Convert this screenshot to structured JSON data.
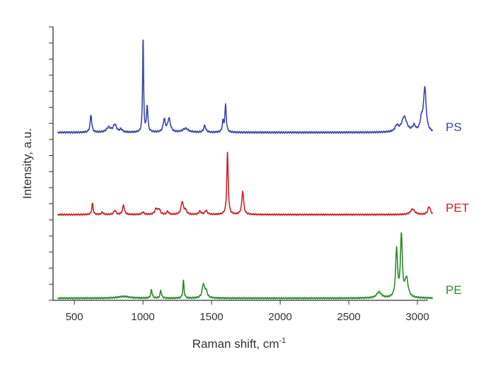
{
  "chart_data": {
    "type": "line",
    "title": "",
    "xlabel": "Raman shift, cm",
    "xlabel_superscript": "-1",
    "ylabel": "Intensity, a.u.",
    "xlim": [
      380,
      3150
    ],
    "x_ticks": [
      500,
      1000,
      1500,
      2000,
      2500,
      3000
    ],
    "grid": false,
    "legend": "inline-right",
    "series": [
      {
        "name": "PS",
        "color": "#3b48a8",
        "baseline": 0.0,
        "peaks": [
          [
            621,
            0.18,
            7
          ],
          [
            750,
            0.05,
            18
          ],
          [
            795,
            0.08,
            14
          ],
          [
            840,
            0.03,
            10
          ],
          [
            1001,
            1.0,
            4
          ],
          [
            1031,
            0.27,
            6
          ],
          [
            1155,
            0.13,
            9
          ],
          [
            1190,
            0.14,
            12
          ],
          [
            1310,
            0.04,
            25
          ],
          [
            1450,
            0.07,
            9
          ],
          [
            1583,
            0.11,
            6
          ],
          [
            1602,
            0.28,
            6
          ],
          [
            2850,
            0.06,
            15
          ],
          [
            2904,
            0.16,
            22
          ],
          [
            2975,
            0.06,
            12
          ],
          [
            3030,
            0.12,
            12
          ],
          [
            3054,
            0.45,
            11
          ]
        ]
      },
      {
        "name": "PET",
        "color": "#cc2228",
        "baseline": 0.0,
        "peaks": [
          [
            632,
            0.14,
            6
          ],
          [
            704,
            0.03,
            8
          ],
          [
            795,
            0.05,
            10
          ],
          [
            858,
            0.12,
            8
          ],
          [
            1000,
            0.03,
            10
          ],
          [
            1096,
            0.07,
            12
          ],
          [
            1118,
            0.06,
            10
          ],
          [
            1180,
            0.04,
            8
          ],
          [
            1286,
            0.16,
            10
          ],
          [
            1310,
            0.05,
            10
          ],
          [
            1415,
            0.04,
            10
          ],
          [
            1460,
            0.05,
            10
          ],
          [
            1616,
            0.78,
            6
          ],
          [
            1727,
            0.3,
            8
          ],
          [
            2965,
            0.07,
            18
          ],
          [
            3085,
            0.1,
            11
          ]
        ]
      },
      {
        "name": "PE",
        "color": "#2f8a2f",
        "baseline": 0.0,
        "peaks": [
          [
            860,
            0.02,
            50
          ],
          [
            1062,
            0.1,
            6
          ],
          [
            1130,
            0.09,
            6
          ],
          [
            1295,
            0.21,
            5
          ],
          [
            1440,
            0.16,
            10
          ],
          [
            1460,
            0.08,
            10
          ],
          [
            2720,
            0.07,
            20
          ],
          [
            2848,
            0.56,
            8
          ],
          [
            2883,
            0.72,
            8
          ],
          [
            2920,
            0.22,
            14
          ]
        ]
      }
    ]
  }
}
